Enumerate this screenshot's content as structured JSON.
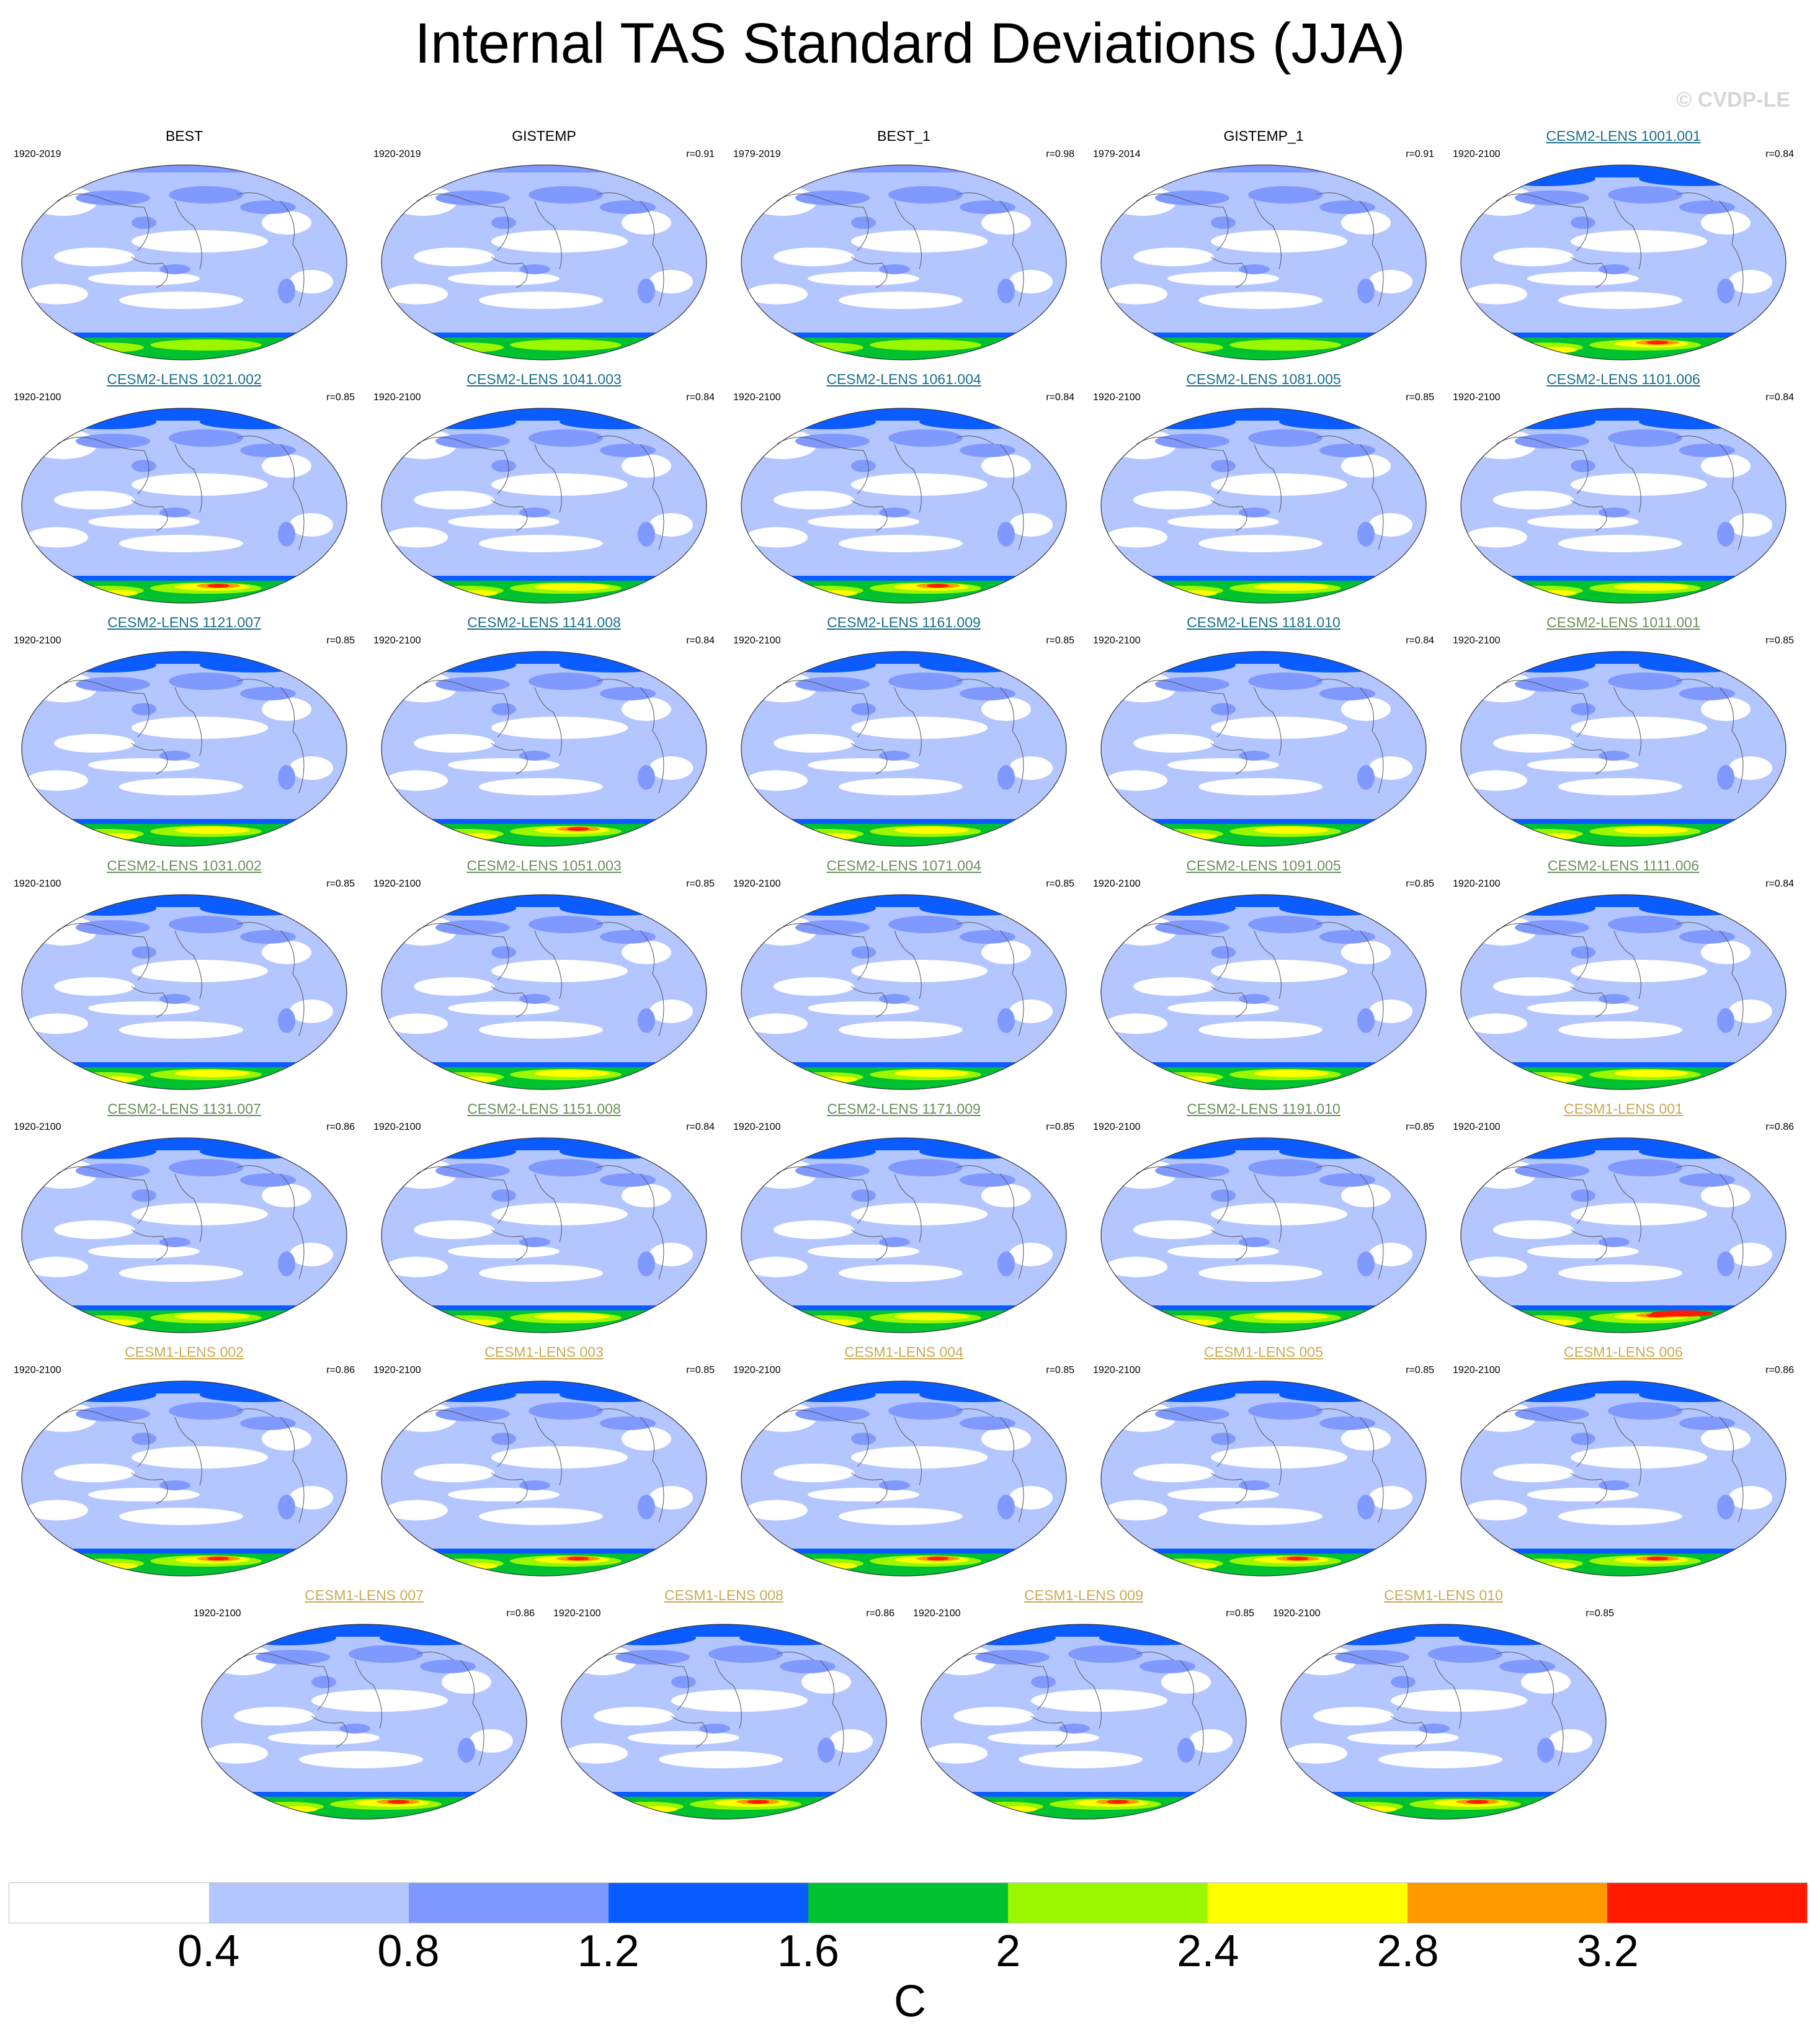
{
  "title": "Internal TAS Standard Deviations (JJA)",
  "watermark": "© CVDP-LE",
  "colors": {
    "bg": "#ffffff",
    "c1": "#b4c6ff",
    "c2": "#8099ff",
    "c3": "#0a5cff",
    "c4": "#00c12f",
    "c5": "#9af700",
    "c6": "#ffff00",
    "c7": "#ff9900",
    "c8": "#ff1a00",
    "coast": "#555555"
  },
  "colorbar": {
    "colors": [
      "#ffffff",
      "#b4c6ff",
      "#8099ff",
      "#0a5cff",
      "#00c12f",
      "#9af700",
      "#ffff00",
      "#ff9900",
      "#ff1a00"
    ],
    "ticks": [
      "0.4",
      "0.8",
      "1.2",
      "1.6",
      "2",
      "2.4",
      "2.8",
      "3.2"
    ],
    "units": "C"
  },
  "panels": [
    {
      "name": "BEST",
      "years": "1920-2019",
      "r": "",
      "group": "obs",
      "intensity": 1
    },
    {
      "name": "GISTEMP",
      "years": "1920-2019",
      "r": "r=0.91",
      "group": "obs",
      "intensity": 1
    },
    {
      "name": "BEST_1",
      "years": "1979-2019",
      "r": "r=0.98",
      "group": "obs",
      "intensity": 1
    },
    {
      "name": "GISTEMP_1",
      "years": "1979-2014",
      "r": "r=0.91",
      "group": "obs",
      "intensity": 1
    },
    {
      "name": "CESM2-LENS 1001.001",
      "years": "1920-2100",
      "r": "r=0.84",
      "group": "cesm2a",
      "intensity": 3
    },
    {
      "name": "CESM2-LENS 1021.002",
      "years": "1920-2100",
      "r": "r=0.85",
      "group": "cesm2a",
      "intensity": 3
    },
    {
      "name": "CESM2-LENS 1041.003",
      "years": "1920-2100",
      "r": "r=0.84",
      "group": "cesm2a",
      "intensity": 2
    },
    {
      "name": "CESM2-LENS 1061.004",
      "years": "1920-2100",
      "r": "r=0.84",
      "group": "cesm2a",
      "intensity": 3
    },
    {
      "name": "CESM2-LENS 1081.005",
      "years": "1920-2100",
      "r": "r=0.85",
      "group": "cesm2a",
      "intensity": 2
    },
    {
      "name": "CESM2-LENS 1101.006",
      "years": "1920-2100",
      "r": "r=0.84",
      "group": "cesm2a",
      "intensity": 2
    },
    {
      "name": "CESM2-LENS 1121.007",
      "years": "1920-2100",
      "r": "r=0.85",
      "group": "cesm2a",
      "intensity": 2
    },
    {
      "name": "CESM2-LENS 1141.008",
      "years": "1920-2100",
      "r": "r=0.84",
      "group": "cesm2a",
      "intensity": 3
    },
    {
      "name": "CESM2-LENS 1161.009",
      "years": "1920-2100",
      "r": "r=0.85",
      "group": "cesm2a",
      "intensity": 2
    },
    {
      "name": "CESM2-LENS 1181.010",
      "years": "1920-2100",
      "r": "r=0.84",
      "group": "cesm2a",
      "intensity": 2
    },
    {
      "name": "CESM2-LENS 1011.001",
      "years": "1920-2100",
      "r": "r=0.85",
      "group": "cesm2b",
      "intensity": 2
    },
    {
      "name": "CESM2-LENS 1031.002",
      "years": "1920-2100",
      "r": "r=0.85",
      "group": "cesm2b",
      "intensity": 2
    },
    {
      "name": "CESM2-LENS 1051.003",
      "years": "1920-2100",
      "r": "r=0.85",
      "group": "cesm2b",
      "intensity": 2
    },
    {
      "name": "CESM2-LENS 1071.004",
      "years": "1920-2100",
      "r": "r=0.85",
      "group": "cesm2b",
      "intensity": 2
    },
    {
      "name": "CESM2-LENS 1091.005",
      "years": "1920-2100",
      "r": "r=0.85",
      "group": "cesm2b",
      "intensity": 2
    },
    {
      "name": "CESM2-LENS 1111.006",
      "years": "1920-2100",
      "r": "r=0.84",
      "group": "cesm2b",
      "intensity": 2
    },
    {
      "name": "CESM2-LENS 1131.007",
      "years": "1920-2100",
      "r": "r=0.86",
      "group": "cesm2b",
      "intensity": 2
    },
    {
      "name": "CESM2-LENS 1151.008",
      "years": "1920-2100",
      "r": "r=0.84",
      "group": "cesm2b",
      "intensity": 2
    },
    {
      "name": "CESM2-LENS 1171.009",
      "years": "1920-2100",
      "r": "r=0.85",
      "group": "cesm2b",
      "intensity": 2
    },
    {
      "name": "CESM2-LENS 1191.010",
      "years": "1920-2100",
      "r": "r=0.85",
      "group": "cesm2b",
      "intensity": 2
    },
    {
      "name": "CESM1-LENS 001",
      "years": "1920-2100",
      "r": "r=0.86",
      "group": "cesm1",
      "intensity": 4
    },
    {
      "name": "CESM1-LENS 002",
      "years": "1920-2100",
      "r": "r=0.86",
      "group": "cesm1",
      "intensity": 3
    },
    {
      "name": "CESM1-LENS 003",
      "years": "1920-2100",
      "r": "r=0.85",
      "group": "cesm1",
      "intensity": 3
    },
    {
      "name": "CESM1-LENS 004",
      "years": "1920-2100",
      "r": "r=0.85",
      "group": "cesm1",
      "intensity": 3
    },
    {
      "name": "CESM1-LENS 005",
      "years": "1920-2100",
      "r": "r=0.85",
      "group": "cesm1",
      "intensity": 3
    },
    {
      "name": "CESM1-LENS 006",
      "years": "1920-2100",
      "r": "r=0.86",
      "group": "cesm1",
      "intensity": 3
    },
    {
      "name": "CESM1-LENS 007",
      "years": "1920-2100",
      "r": "r=0.86",
      "group": "cesm1",
      "intensity": 3
    },
    {
      "name": "CESM1-LENS 008",
      "years": "1920-2100",
      "r": "r=0.86",
      "group": "cesm1",
      "intensity": 3
    },
    {
      "name": "CESM1-LENS 009",
      "years": "1920-2100",
      "r": "r=0.85",
      "group": "cesm1",
      "intensity": 3
    },
    {
      "name": "CESM1-LENS 010",
      "years": "1920-2100",
      "r": "r=0.85",
      "group": "cesm1",
      "intensity": 3
    }
  ]
}
